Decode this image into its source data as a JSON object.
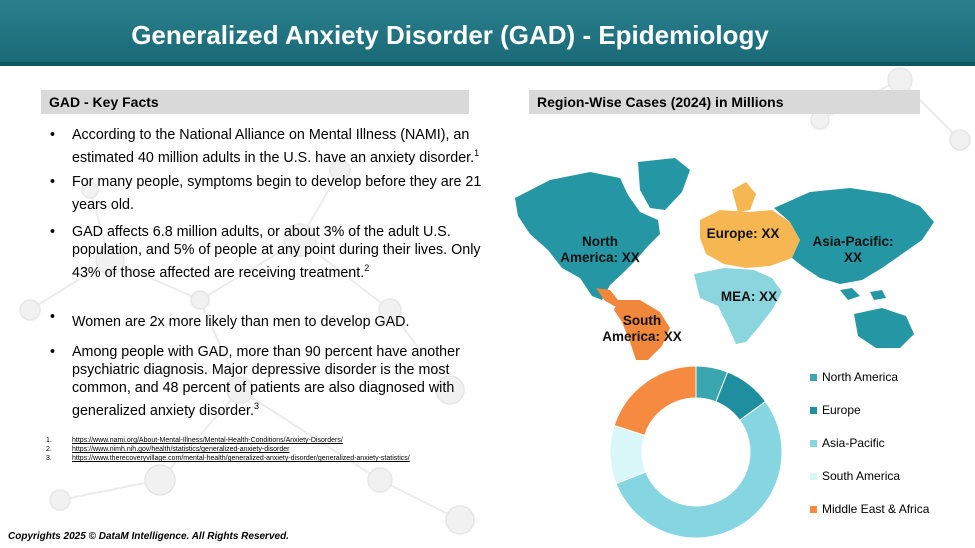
{
  "header": {
    "title": "Generalized Anxiety Disorder (GAD) - Epidemiology"
  },
  "left": {
    "title": "GAD - Key Facts",
    "facts": [
      {
        "text": "According to the National Alliance on Mental Illness (NAMI), an estimated 40 million adults in the U.S. have an anxiety disorder.",
        "ref": "1"
      },
      {
        "text": "For many people, symptoms begin to develop before they are 21 years old.",
        "ref": ""
      },
      {
        "text": "GAD affects 6.8 million adults, or about 3% of the adult U.S. population, and 5% of people at any point during their lives. Only 43% of those affected are receiving treatment.",
        "ref": "2"
      },
      {
        "text": "Women are 2x more likely than men to develop GAD.",
        "ref": ""
      },
      {
        "text": " Among people with GAD, more than 90 percent have another psychiatric diagnosis. Major depressive disorder is the most common, and 48 percent of patients are also diagnosed with generalized anxiety disorder.",
        "ref": "3"
      }
    ],
    "references": [
      {
        "n": "1.",
        "url": "https://www.nami.org/About-Mental-Illness/Mental-Health-Conditions/Anxiety-Disorders/"
      },
      {
        "n": "2.",
        "url": "https://www.nimh.nih.gov/health/statistics/generalized-anxiety-disorder"
      },
      {
        "n": "3.",
        "url": "https://www.therecoveryvillage.com/mental-health/generalized-anxiety-disorder/generalized-anxiety-statistics/"
      }
    ]
  },
  "right": {
    "title": "Region-Wise Cases (2024) in Millions",
    "map_labels": {
      "north_america": "North America: XX",
      "europe": "Europe: XX",
      "asia_pacific": "Asia-Pacific: XX",
      "mea": "MEA: XX",
      "south_america": "South America: XX"
    },
    "colors": {
      "north_america": "#2596a3",
      "europe": "#f6b753",
      "asia_pacific": "#2596a3",
      "mea": "#8ad5de",
      "south_america": "#f0873a"
    }
  },
  "chart_data": {
    "type": "pie",
    "categories": [
      "North America",
      "Europe",
      "Asia-Pacific",
      "South America",
      "Middle East & Africa"
    ],
    "values": [
      6,
      9,
      54,
      11,
      20
    ],
    "colors": [
      "#3aa6b0",
      "#1f8fa0",
      "#86d6e1",
      "#d9f6f8",
      "#f58a40"
    ]
  },
  "footer": {
    "copyright": "Copyrights 2025 © DataM Intelligence. All Rights Reserved."
  }
}
